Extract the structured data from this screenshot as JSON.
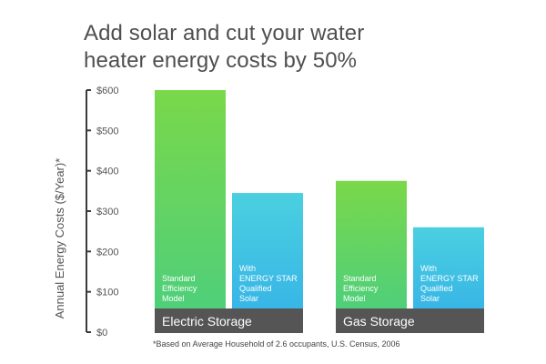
{
  "title_lines": [
    "Add solar and cut your water",
    "heater energy costs by 50%"
  ],
  "footnote": "*Based on Average Household of 2.6 occupants, U.S. Census, 2006",
  "colors": {
    "standard_top": "#7ad84a",
    "standard_bottom": "#4fcf7a",
    "solar_top": "#4ad0e0",
    "solar_bottom": "#38b6e6",
    "group_band": "#555555",
    "axis": "#3a3a3a",
    "text": "#555555"
  },
  "chart_data": {
    "type": "bar",
    "ylabel": "Annual Energy Costs ($/Year)*",
    "ylim": [
      0,
      600
    ],
    "yticks": [
      "$0",
      "$100",
      "$200",
      "$300",
      "$400",
      "$500",
      "$600"
    ],
    "grid": false,
    "categories": [
      "Electric Storage",
      "Gas Storage"
    ],
    "series": [
      {
        "name": "Standard Efficiency Model",
        "label_lines": [
          "Standard",
          "Efficiency",
          "Model"
        ],
        "values": [
          600,
          375
        ]
      },
      {
        "name": "With ENERGY STAR Qualified Solar",
        "label_lines": [
          "With",
          "ENERGY STAR",
          "Qualified",
          "Solar"
        ],
        "values": [
          345,
          260
        ]
      }
    ]
  }
}
